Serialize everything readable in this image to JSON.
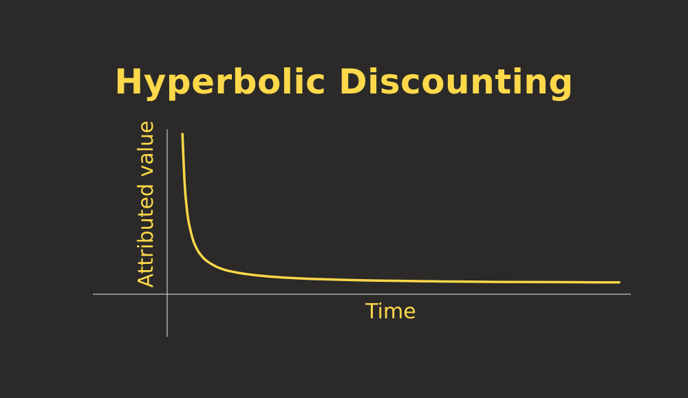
{
  "chart_data": {
    "type": "line",
    "title": "Hyperbolic Discounting",
    "xlabel": "Time",
    "ylabel": "Attributed value",
    "grid": false,
    "xlim": [
      0,
      100
    ],
    "ylim": [
      0,
      1
    ],
    "series": [
      {
        "color": "#fdd84a",
        "x": [
          0.5,
          1,
          1.5,
          2,
          3,
          4,
          5,
          6,
          8,
          10,
          13,
          16,
          20,
          25,
          30,
          36,
          43,
          50,
          58,
          66,
          75,
          84,
          92,
          100
        ],
        "y": [
          1.0,
          0.667,
          0.5,
          0.4,
          0.286,
          0.222,
          0.182,
          0.154,
          0.118,
          0.095,
          0.075,
          0.062,
          0.05,
          0.04,
          0.033,
          0.028,
          0.023,
          0.02,
          0.017,
          0.015,
          0.013,
          0.012,
          0.011,
          0.01
        ]
      }
    ],
    "colors": {
      "background": "#2b2a29",
      "accent": "#fdd84a",
      "axis": "#e8e8e8"
    }
  }
}
